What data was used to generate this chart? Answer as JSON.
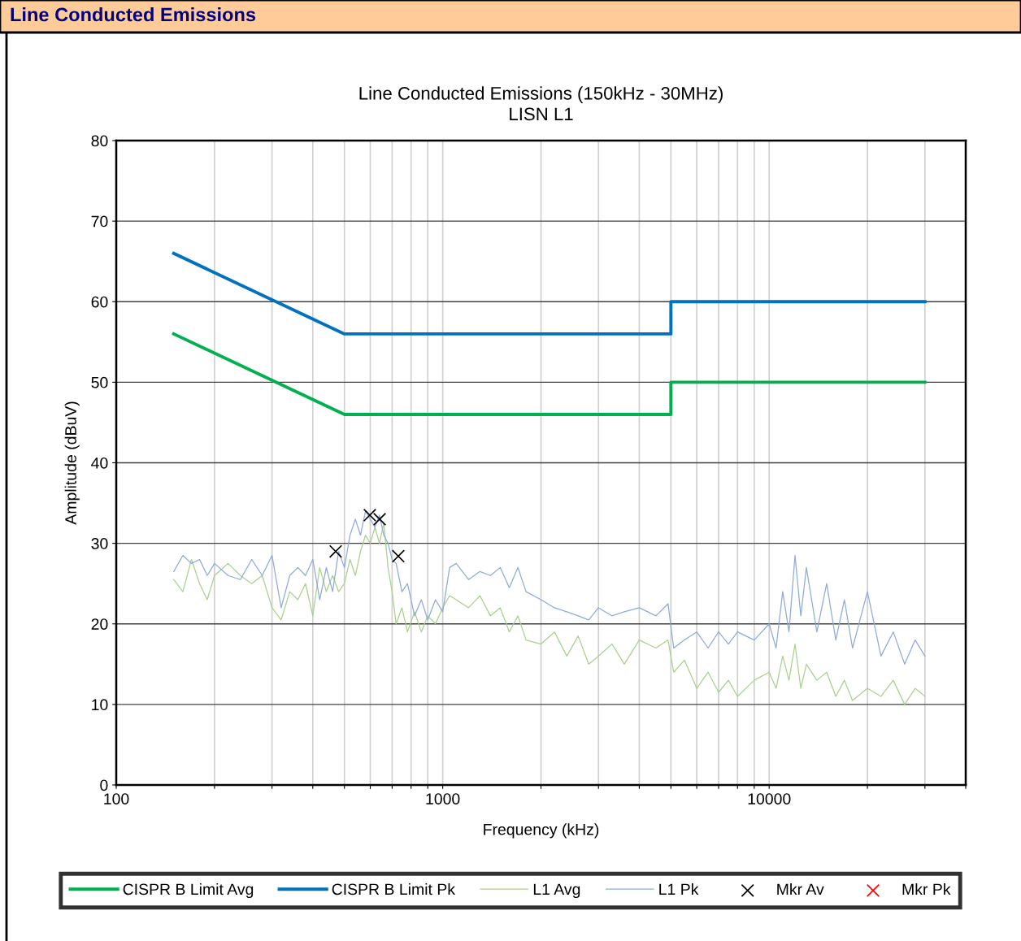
{
  "chart_data": {
    "type": "line",
    "title": "Line Conducted Emissions (150kHz - 30MHz)",
    "subtitle": "LISN L1",
    "xlabel": "Frequency (kHz)",
    "ylabel": "Amplitude (dBuV)",
    "annotations": [
      "Line Conducted Emissions"
    ],
    "log": "x",
    "xlim": [
      100,
      40000
    ],
    "ylim": [
      0,
      80
    ],
    "xticks": [
      100,
      {
        "value": 200,
        "label": null
      },
      {
        "value": 300,
        "label": null
      },
      {
        "value": 400,
        "label": null
      },
      {
        "value": 500,
        "label": null
      },
      {
        "value": 600,
        "label": null
      },
      {
        "value": 700,
        "label": null
      },
      {
        "value": 800,
        "label": null
      },
      {
        "value": 900,
        "label": null
      },
      1000,
      {
        "value": 2000,
        "label": null
      },
      {
        "value": 3000,
        "label": null
      },
      {
        "value": 4000,
        "label": null
      },
      {
        "value": 5000,
        "label": null
      },
      {
        "value": 6000,
        "label": null
      },
      {
        "value": 7000,
        "label": null
      },
      {
        "value": 8000,
        "label": null
      },
      {
        "value": 9000,
        "label": null
      },
      10000,
      {
        "value": 20000,
        "label": null
      },
      {
        "value": 30000,
        "label": null
      },
      {
        "value": 40000,
        "label": null
      }
    ],
    "yticks": [
      0,
      10,
      20,
      30,
      40,
      50,
      60,
      70,
      80
    ],
    "grid": true,
    "legend": "bottom",
    "series": [
      {
        "name": "CISPR B Limit Avg",
        "color": "#00b050",
        "x": [
          150,
          500,
          5000,
          5000,
          30000
        ],
        "values": [
          56,
          46,
          46,
          50,
          50
        ]
      },
      {
        "name": "CISPR B Limit Pk",
        "color": "#0070c0",
        "x": [
          150,
          500,
          5000,
          5000,
          30000
        ],
        "values": [
          66,
          56,
          56,
          60,
          60
        ]
      },
      {
        "name": "L1 Avg",
        "color": "#a9d18e",
        "x": [
          150,
          160,
          170,
          180,
          190,
          200,
          220,
          240,
          260,
          280,
          300,
          320,
          340,
          360,
          380,
          400,
          420,
          440,
          460,
          480,
          500,
          520,
          540,
          560,
          580,
          600,
          620,
          640,
          660,
          680,
          700,
          720,
          750,
          780,
          820,
          860,
          900,
          950,
          1000,
          1050,
          1100,
          1200,
          1300,
          1400,
          1500,
          1600,
          1700,
          1800,
          2000,
          2200,
          2400,
          2600,
          2800,
          3000,
          3300,
          3600,
          4000,
          4500,
          4900,
          5100,
          5500,
          6000,
          6500,
          7000,
          7500,
          8000,
          9000,
          10000,
          10500,
          11000,
          11500,
          12000,
          12500,
          13000,
          14000,
          15000,
          16000,
          17000,
          18000,
          20000,
          22000,
          24000,
          26000,
          28000,
          30000
        ],
        "values": [
          25.5,
          24,
          28,
          25,
          23,
          26,
          27.5,
          26,
          25,
          26,
          22,
          20.5,
          24,
          23,
          25,
          21,
          27,
          24,
          26,
          24,
          25,
          28,
          26,
          29,
          31,
          30,
          32,
          30,
          32.5,
          27,
          24,
          20,
          22,
          19,
          21.5,
          19,
          21,
          20,
          22,
          23.5,
          23,
          22,
          23.5,
          21,
          22,
          19,
          21,
          18,
          17.5,
          19,
          16,
          18.5,
          15,
          16,
          17.5,
          15,
          18,
          17,
          18,
          14,
          15.5,
          12,
          14,
          11.5,
          13,
          11,
          13,
          14,
          12,
          16,
          13,
          17.5,
          12,
          15,
          13,
          14,
          11,
          13,
          10.5,
          12,
          11,
          13,
          10,
          12,
          11
        ]
      },
      {
        "name": "L1 Pk",
        "color": "#8faadc",
        "x": [
          150,
          160,
          170,
          180,
          190,
          200,
          220,
          240,
          260,
          280,
          300,
          320,
          340,
          360,
          380,
          400,
          420,
          440,
          460,
          480,
          500,
          520,
          540,
          560,
          580,
          600,
          620,
          640,
          660,
          680,
          700,
          720,
          750,
          780,
          820,
          860,
          900,
          950,
          1000,
          1050,
          1100,
          1200,
          1300,
          1400,
          1500,
          1600,
          1700,
          1800,
          2000,
          2200,
          2400,
          2600,
          2800,
          3000,
          3300,
          3600,
          4000,
          4500,
          4900,
          5100,
          5500,
          6000,
          6500,
          7000,
          7500,
          8000,
          9000,
          10000,
          10500,
          11000,
          11500,
          12000,
          12500,
          13000,
          14000,
          15000,
          16000,
          17000,
          18000,
          20000,
          22000,
          24000,
          26000,
          28000,
          30000
        ],
        "values": [
          26.5,
          28.5,
          27.5,
          28,
          26,
          27.5,
          26,
          25.5,
          28,
          26,
          28.5,
          22,
          26,
          27,
          26,
          28,
          23,
          27,
          24,
          29,
          27,
          31,
          33,
          31,
          34,
          33,
          32,
          33.5,
          31,
          30,
          28,
          27.5,
          24,
          25,
          21,
          23,
          20.5,
          23,
          21.5,
          27,
          27.5,
          25.5,
          26.5,
          26,
          27,
          24.5,
          27,
          24,
          23,
          22,
          21.5,
          21,
          20.5,
          22,
          21,
          21.5,
          22,
          21,
          22.5,
          17,
          18,
          19,
          17,
          19,
          17.5,
          19,
          18,
          20,
          17,
          24,
          19,
          28.5,
          21,
          27,
          19,
          25,
          18,
          23,
          17,
          24,
          16,
          19,
          15,
          18,
          16
        ]
      },
      {
        "name": "Mkr Av",
        "type": "scatter",
        "marker": "cross",
        "color": "#000000",
        "x": [
          470,
          598,
          641,
          731
        ],
        "values": [
          29.0,
          33.5,
          33.0,
          28.4
        ]
      },
      {
        "name": "Mkr Pk",
        "type": "scatter",
        "marker": "cross",
        "color": "#ff0000"
      }
    ]
  }
}
